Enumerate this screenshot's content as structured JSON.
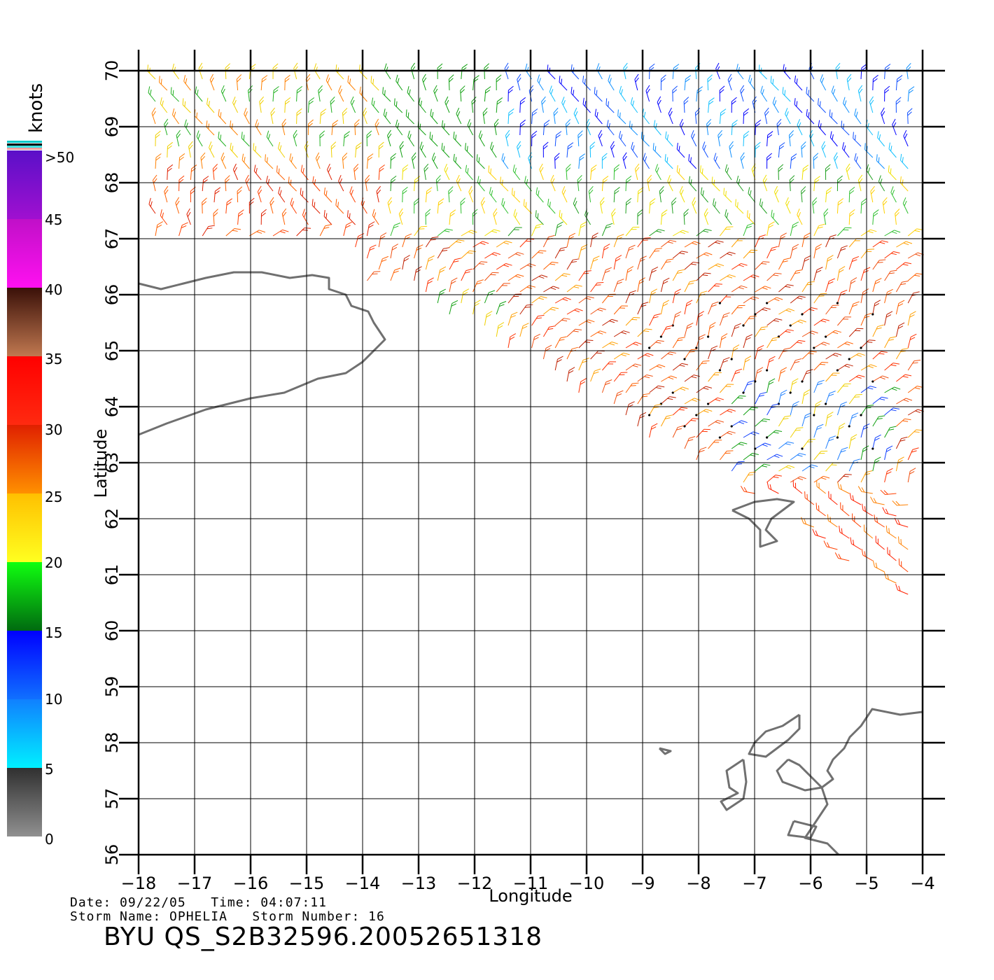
{
  "colorbar": {
    "unit_label": "knots",
    "tick_labels": [
      ">50",
      "45",
      "40",
      "35",
      "30",
      "25",
      "20",
      "15",
      "10",
      "5",
      "0"
    ],
    "bands": [
      {
        "range": "45-50",
        "from": "#5a10c8",
        "to": "#a010d0"
      },
      {
        "range": "40-45",
        "from": "#c010c8",
        "to": "#ff10f0"
      },
      {
        "range": "35-40",
        "from": "#3a1008",
        "to": "#c07850"
      },
      {
        "range": "30-35",
        "from": "#ff0000",
        "to": "#ff2a10"
      },
      {
        "range": "25-30",
        "from": "#e02000",
        "to": "#ff9000"
      },
      {
        "range": "20-25",
        "from": "#ffc000",
        "to": "#ffff20"
      },
      {
        "range": "15-20",
        "from": "#10ff10",
        "to": "#006a10"
      },
      {
        "range": "10-15",
        "from": "#0000ff",
        "to": "#1070ff"
      },
      {
        "range": "5-10",
        "from": "#1080ff",
        "to": "#00f0ff"
      },
      {
        "range": "0-5",
        "from": "#303030",
        "to": "#909090"
      }
    ]
  },
  "axes": {
    "x_label": "Longitude",
    "y_label": "Latitude",
    "lon_range": [
      -18,
      -4
    ],
    "lat_range": [
      56,
      70
    ],
    "x_ticks": [
      -18,
      -17,
      -16,
      -15,
      -14,
      -13,
      -12,
      -11,
      -10,
      -9,
      -8,
      -7,
      -6,
      -5,
      -4
    ],
    "y_ticks": [
      56,
      57,
      58,
      59,
      60,
      61,
      62,
      63,
      64,
      65,
      66,
      67,
      68,
      69,
      70
    ],
    "grid": true
  },
  "meta": {
    "date_line": "Date: 09/22/05   Time: 04:07:11",
    "storm_line": "Storm Name: OPHELIA   Storm Number: 16",
    "product": "BYU QS_S2B32596.20052651318"
  },
  "map_data": {
    "type": "wind barb field",
    "land_color": "#707070",
    "coastlines": [
      {
        "name": "Iceland",
        "lonlat": [
          [
            -18,
            66.2
          ],
          [
            -17.6,
            66.1
          ],
          [
            -17.2,
            66.2
          ],
          [
            -16.8,
            66.3
          ],
          [
            -16.3,
            66.4
          ],
          [
            -15.8,
            66.4
          ],
          [
            -15.3,
            66.3
          ],
          [
            -14.9,
            66.35
          ],
          [
            -14.6,
            66.3
          ],
          [
            -14.6,
            66.1
          ],
          [
            -14.3,
            66.0
          ],
          [
            -14.2,
            65.8
          ],
          [
            -13.9,
            65.7
          ],
          [
            -13.8,
            65.5
          ],
          [
            -13.6,
            65.2
          ],
          [
            -13.8,
            65.0
          ],
          [
            -14.0,
            64.8
          ],
          [
            -14.3,
            64.6
          ],
          [
            -14.8,
            64.5
          ],
          [
            -15.4,
            64.25
          ],
          [
            -16.0,
            64.15
          ],
          [
            -16.8,
            63.95
          ],
          [
            -17.5,
            63.7
          ],
          [
            -18,
            63.5
          ]
        ]
      },
      {
        "name": "Faroe Islands",
        "lonlat": [
          [
            -7.4,
            62.15
          ],
          [
            -7.0,
            62.3
          ],
          [
            -6.6,
            62.35
          ],
          [
            -6.3,
            62.3
          ],
          [
            -6.5,
            62.15
          ],
          [
            -6.7,
            62.0
          ],
          [
            -6.8,
            61.8
          ],
          [
            -6.6,
            61.6
          ],
          [
            -6.9,
            61.5
          ],
          [
            -6.9,
            61.8
          ],
          [
            -7.1,
            62.0
          ],
          [
            -7.4,
            62.15
          ]
        ]
      },
      {
        "name": "Scotland",
        "lonlat": [
          [
            -4,
            58.55
          ],
          [
            -4.4,
            58.5
          ],
          [
            -4.9,
            58.6
          ],
          [
            -5.1,
            58.3
          ],
          [
            -5.3,
            58.1
          ],
          [
            -5.4,
            57.9
          ],
          [
            -5.6,
            57.7
          ],
          [
            -5.7,
            57.5
          ],
          [
            -5.6,
            57.35
          ],
          [
            -5.8,
            57.2
          ],
          [
            -5.7,
            56.9
          ],
          [
            -5.9,
            56.6
          ],
          [
            -6.1,
            56.3
          ],
          [
            -5.7,
            56.2
          ],
          [
            -5.5,
            56.0
          ]
        ]
      },
      {
        "name": "Lewis and Harris",
        "lonlat": [
          [
            -6.2,
            58.5
          ],
          [
            -6.5,
            58.3
          ],
          [
            -6.8,
            58.2
          ],
          [
            -7.0,
            58.0
          ],
          [
            -7.1,
            57.8
          ],
          [
            -6.8,
            57.75
          ],
          [
            -6.6,
            57.9
          ],
          [
            -6.4,
            58.05
          ],
          [
            -6.2,
            58.25
          ],
          [
            -6.2,
            58.5
          ]
        ]
      },
      {
        "name": "Uists",
        "lonlat": [
          [
            -7.2,
            57.7
          ],
          [
            -7.5,
            57.5
          ],
          [
            -7.45,
            57.2
          ],
          [
            -7.3,
            57.1
          ],
          [
            -7.6,
            56.95
          ],
          [
            -7.5,
            56.8
          ],
          [
            -7.2,
            57.0
          ],
          [
            -7.15,
            57.3
          ],
          [
            -7.2,
            57.7
          ]
        ]
      },
      {
        "name": "Skye",
        "lonlat": [
          [
            -6.4,
            57.7
          ],
          [
            -6.6,
            57.5
          ],
          [
            -6.5,
            57.3
          ],
          [
            -6.1,
            57.15
          ],
          [
            -5.8,
            57.2
          ],
          [
            -6.0,
            57.4
          ],
          [
            -6.2,
            57.6
          ],
          [
            -6.4,
            57.7
          ]
        ]
      },
      {
        "name": "Mull",
        "lonlat": [
          [
            -6.3,
            56.6
          ],
          [
            -5.9,
            56.5
          ],
          [
            -6.0,
            56.3
          ],
          [
            -6.4,
            56.35
          ],
          [
            -6.3,
            56.6
          ]
        ]
      },
      {
        "name": "Rona",
        "lonlat": [
          [
            -8.7,
            57.9
          ],
          [
            -8.5,
            57.85
          ],
          [
            -8.6,
            57.8
          ],
          [
            -8.7,
            57.9
          ]
        ]
      }
    ]
  }
}
